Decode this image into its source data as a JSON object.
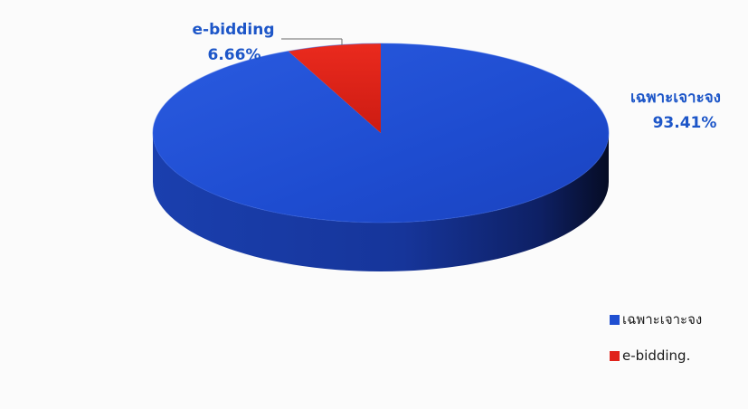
{
  "chart_data": {
    "type": "pie",
    "title": "",
    "slices": [
      {
        "name": "เฉพาะเจาะจง",
        "value": 93.41,
        "label": "93.41%",
        "color": "#1f4fd1"
      },
      {
        "name": "e-bidding",
        "value": 6.66,
        "label": "6.66%",
        "color": "#e0231b"
      }
    ],
    "legend": {
      "placement": "bottom-right",
      "entries": [
        {
          "label": "เฉพาะเจาะจง",
          "color": "#1f4fd1"
        },
        {
          "label": "e-bidding.",
          "color": "#e0231b"
        }
      ]
    },
    "label_color": "#1d56c8",
    "style": "3d"
  }
}
